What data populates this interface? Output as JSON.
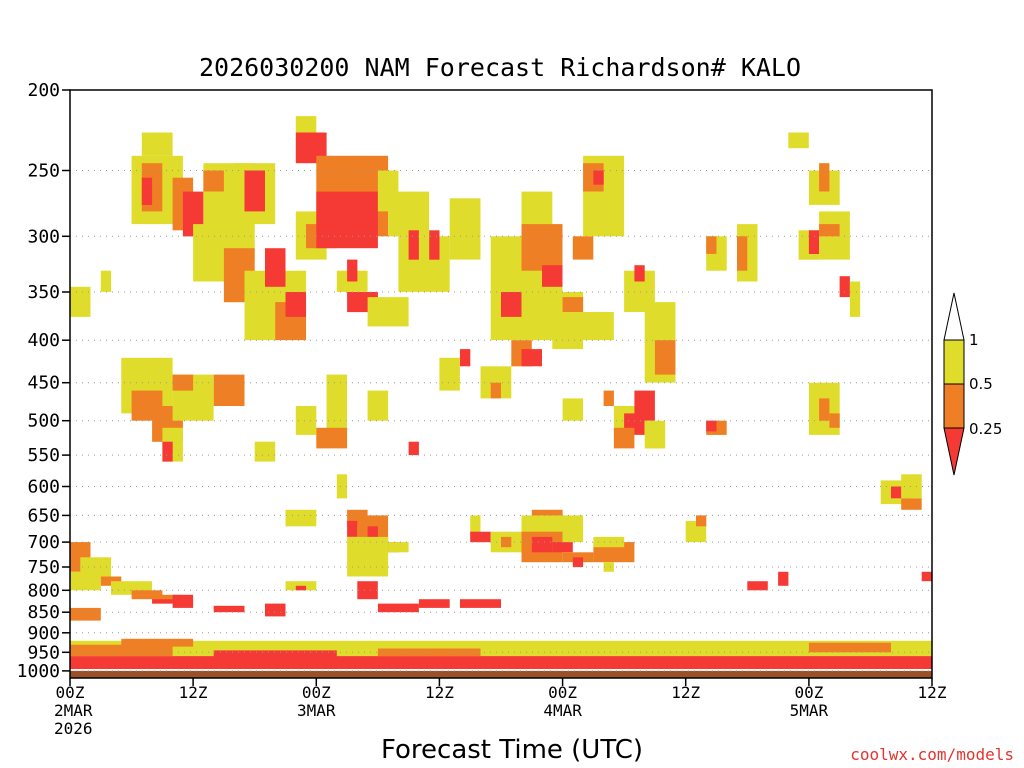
{
  "chart_data": {
    "type": "heatmap",
    "title": "2026030200 NAM Forecast Richardson# KALO",
    "xlabel": "Forecast Time (UTC)",
    "ylabel": "Pressure (hPa)",
    "credit": "coolwx.com/models",
    "y_ticks": [
      200,
      250,
      300,
      350,
      400,
      450,
      500,
      550,
      600,
      650,
      700,
      750,
      800,
      850,
      900,
      950,
      1000
    ],
    "y_range_hPa": [
      200,
      1020
    ],
    "x_range_hours": [
      0,
      84
    ],
    "x_ticks": [
      {
        "hour": 0,
        "lines": [
          "00Z",
          "2MAR",
          "2026"
        ]
      },
      {
        "hour": 12,
        "lines": [
          "12Z"
        ]
      },
      {
        "hour": 24,
        "lines": [
          "00Z",
          "3MAR"
        ]
      },
      {
        "hour": 36,
        "lines": [
          "12Z"
        ]
      },
      {
        "hour": 48,
        "lines": [
          "00Z",
          "4MAR"
        ]
      },
      {
        "hour": 60,
        "lines": [
          "12Z"
        ]
      },
      {
        "hour": 72,
        "lines": [
          "00Z",
          "5MAR"
        ]
      },
      {
        "hour": 84,
        "lines": [
          "12Z"
        ]
      }
    ],
    "legend": {
      "labels": [
        "1",
        "0.5",
        "0.25"
      ],
      "bins": [
        {
          "range": "0.5-1",
          "color": "#e0dc2c"
        },
        {
          "range": "0.25-0.5",
          "color": "#ef7f24"
        },
        {
          "range": "<0.25",
          "color": "#f53a36"
        }
      ]
    },
    "colors": {
      "yellow": "#e0dc2c",
      "orange": "#ef7f24",
      "red": "#f53a36",
      "ground": "#9b5128"
    },
    "grid": "dotted at each pressure tick",
    "approx_cells_note": "each cell: hour range [h0,h1], pressure range [p_top,p_bottom] hPa, bin",
    "cells": [
      [
        0,
        2,
        345,
        375,
        "yellow"
      ],
      [
        3,
        4,
        330,
        350,
        "yellow"
      ],
      [
        7,
        10,
        225,
        240,
        "yellow"
      ],
      [
        6,
        11,
        240,
        290,
        "yellow"
      ],
      [
        7,
        9,
        245,
        280,
        "orange"
      ],
      [
        7,
        8,
        255,
        275,
        "red"
      ],
      [
        10,
        12,
        255,
        295,
        "orange"
      ],
      [
        11,
        13,
        265,
        300,
        "red"
      ],
      [
        12,
        16,
        290,
        340,
        "yellow"
      ],
      [
        13,
        18,
        245,
        320,
        "yellow"
      ],
      [
        13,
        15,
        250,
        265,
        "orange"
      ],
      [
        16,
        20,
        245,
        290,
        "yellow"
      ],
      [
        17,
        19,
        250,
        280,
        "red"
      ],
      [
        15,
        18,
        310,
        360,
        "orange"
      ],
      [
        17,
        23,
        330,
        400,
        "yellow"
      ],
      [
        19,
        21,
        310,
        345,
        "red"
      ],
      [
        20,
        23,
        360,
        400,
        "orange"
      ],
      [
        21,
        23,
        350,
        375,
        "red"
      ],
      [
        22,
        25,
        280,
        320,
        "yellow"
      ],
      [
        23,
        26,
        290,
        310,
        "orange"
      ],
      [
        22,
        24,
        215,
        225,
        "yellow"
      ],
      [
        22,
        25,
        225,
        245,
        "red"
      ],
      [
        24,
        31,
        240,
        300,
        "orange"
      ],
      [
        24,
        30,
        265,
        310,
        "red"
      ],
      [
        30,
        32,
        250,
        280,
        "yellow"
      ],
      [
        31,
        35,
        265,
        300,
        "yellow"
      ],
      [
        26,
        29,
        330,
        350,
        "yellow"
      ],
      [
        27,
        28,
        320,
        340,
        "red"
      ],
      [
        27,
        30,
        350,
        370,
        "red"
      ],
      [
        29,
        33,
        355,
        385,
        "yellow"
      ],
      [
        32,
        37,
        300,
        350,
        "yellow"
      ],
      [
        33,
        34,
        295,
        320,
        "red"
      ],
      [
        35,
        36,
        295,
        320,
        "red"
      ],
      [
        37,
        40,
        270,
        320,
        "yellow"
      ],
      [
        41,
        48,
        300,
        400,
        "yellow"
      ],
      [
        42,
        44,
        350,
        375,
        "red"
      ],
      [
        44,
        46,
        300,
        320,
        "orange"
      ],
      [
        43,
        45,
        400,
        430,
        "orange"
      ],
      [
        44,
        46,
        410,
        430,
        "red"
      ],
      [
        44,
        47,
        265,
        300,
        "yellow"
      ],
      [
        44,
        48,
        290,
        330,
        "orange"
      ],
      [
        46,
        48,
        325,
        345,
        "red"
      ],
      [
        47,
        50,
        350,
        410,
        "yellow"
      ],
      [
        48,
        50,
        355,
        370,
        "orange"
      ],
      [
        49,
        51,
        300,
        320,
        "orange"
      ],
      [
        49,
        53,
        370,
        400,
        "yellow"
      ],
      [
        50,
        54,
        240,
        300,
        "yellow"
      ],
      [
        50,
        52,
        245,
        265,
        "orange"
      ],
      [
        51,
        52,
        250,
        260,
        "red"
      ],
      [
        54,
        57,
        330,
        370,
        "yellow"
      ],
      [
        55,
        56,
        325,
        340,
        "red"
      ],
      [
        56,
        59,
        360,
        450,
        "yellow"
      ],
      [
        57,
        59,
        400,
        440,
        "orange"
      ],
      [
        62,
        64,
        300,
        330,
        "yellow"
      ],
      [
        62,
        63,
        300,
        315,
        "orange"
      ],
      [
        65,
        67,
        290,
        340,
        "yellow"
      ],
      [
        65,
        66,
        300,
        330,
        "orange"
      ],
      [
        71,
        73,
        295,
        320,
        "yellow"
      ],
      [
        72,
        73,
        295,
        315,
        "red"
      ],
      [
        73,
        76,
        280,
        320,
        "yellow"
      ],
      [
        73,
        75,
        290,
        300,
        "orange"
      ],
      [
        70,
        72,
        225,
        235,
        "yellow"
      ],
      [
        72,
        75,
        250,
        275,
        "yellow"
      ],
      [
        73,
        74,
        245,
        265,
        "orange"
      ],
      [
        75,
        76,
        335,
        355,
        "red"
      ],
      [
        76,
        77,
        340,
        375,
        "yellow"
      ],
      [
        5,
        10,
        420,
        490,
        "yellow"
      ],
      [
        6,
        9,
        460,
        500,
        "orange"
      ],
      [
        8,
        11,
        480,
        530,
        "orange"
      ],
      [
        9,
        11,
        510,
        560,
        "yellow"
      ],
      [
        9,
        10,
        530,
        560,
        "red"
      ],
      [
        10,
        14,
        440,
        500,
        "yellow"
      ],
      [
        10,
        12,
        440,
        460,
        "orange"
      ],
      [
        14,
        17,
        440,
        480,
        "orange"
      ],
      [
        18,
        20,
        530,
        560,
        "yellow"
      ],
      [
        22,
        24,
        480,
        520,
        "yellow"
      ],
      [
        25,
        27,
        440,
        520,
        "yellow"
      ],
      [
        24,
        27,
        510,
        540,
        "orange"
      ],
      [
        26,
        27,
        580,
        620,
        "yellow"
      ],
      [
        29,
        31,
        460,
        500,
        "yellow"
      ],
      [
        33,
        34,
        530,
        550,
        "red"
      ],
      [
        36,
        38,
        420,
        460,
        "yellow"
      ],
      [
        38,
        39,
        410,
        430,
        "red"
      ],
      [
        40,
        43,
        430,
        470,
        "yellow"
      ],
      [
        41,
        42,
        450,
        470,
        "orange"
      ],
      [
        48,
        50,
        470,
        500,
        "yellow"
      ],
      [
        52,
        53,
        460,
        480,
        "orange"
      ],
      [
        53,
        56,
        480,
        520,
        "yellow"
      ],
      [
        54,
        56,
        490,
        520,
        "red"
      ],
      [
        53,
        55,
        510,
        540,
        "orange"
      ],
      [
        55,
        57,
        460,
        500,
        "red"
      ],
      [
        56,
        58,
        500,
        540,
        "yellow"
      ],
      [
        62,
        64,
        500,
        520,
        "orange"
      ],
      [
        62,
        63,
        500,
        515,
        "red"
      ],
      [
        72,
        75,
        450,
        520,
        "yellow"
      ],
      [
        73,
        74,
        470,
        500,
        "orange"
      ],
      [
        74,
        75,
        490,
        510,
        "orange"
      ],
      [
        79,
        82,
        590,
        630,
        "yellow"
      ],
      [
        80,
        81,
        600,
        620,
        "red"
      ],
      [
        81,
        83,
        620,
        640,
        "orange"
      ],
      [
        81,
        83,
        580,
        620,
        "yellow"
      ],
      [
        21,
        24,
        640,
        670,
        "yellow"
      ],
      [
        27,
        29,
        640,
        670,
        "orange"
      ],
      [
        27,
        28,
        660,
        690,
        "red"
      ],
      [
        28,
        31,
        650,
        700,
        "orange"
      ],
      [
        29,
        30,
        670,
        690,
        "red"
      ],
      [
        30,
        32,
        700,
        720,
        "orange"
      ],
      [
        27,
        31,
        690,
        770,
        "yellow"
      ],
      [
        31,
        33,
        700,
        720,
        "yellow"
      ],
      [
        39,
        40,
        650,
        690,
        "yellow"
      ],
      [
        39,
        41,
        680,
        700,
        "red"
      ],
      [
        41,
        44,
        680,
        720,
        "yellow"
      ],
      [
        42,
        43,
        690,
        710,
        "orange"
      ],
      [
        45,
        48,
        640,
        660,
        "orange"
      ],
      [
        44,
        50,
        650,
        700,
        "yellow"
      ],
      [
        44,
        48,
        680,
        740,
        "orange"
      ],
      [
        45,
        47,
        690,
        720,
        "red"
      ],
      [
        47,
        49,
        700,
        720,
        "red"
      ],
      [
        48,
        51,
        720,
        740,
        "orange"
      ],
      [
        49,
        50,
        730,
        750,
        "red"
      ],
      [
        51,
        55,
        700,
        740,
        "orange"
      ],
      [
        51,
        54,
        690,
        710,
        "yellow"
      ],
      [
        52,
        53,
        740,
        760,
        "yellow"
      ],
      [
        60,
        62,
        660,
        700,
        "yellow"
      ],
      [
        61,
        62,
        650,
        670,
        "orange"
      ],
      [
        0,
        2,
        700,
        760,
        "orange"
      ],
      [
        0,
        3,
        760,
        800,
        "yellow"
      ],
      [
        1,
        4,
        730,
        770,
        "yellow"
      ],
      [
        3,
        5,
        770,
        790,
        "orange"
      ],
      [
        4,
        8,
        780,
        810,
        "yellow"
      ],
      [
        6,
        9,
        800,
        820,
        "orange"
      ],
      [
        8,
        11,
        810,
        830,
        "orange"
      ],
      [
        8,
        10,
        820,
        830,
        "red"
      ],
      [
        10,
        12,
        810,
        840,
        "red"
      ],
      [
        14,
        17,
        835,
        850,
        "red"
      ],
      [
        19,
        21,
        830,
        860,
        "red"
      ],
      [
        21,
        24,
        780,
        800,
        "yellow"
      ],
      [
        22,
        23,
        790,
        800,
        "red"
      ],
      [
        28,
        30,
        780,
        820,
        "red"
      ],
      [
        30,
        34,
        830,
        850,
        "red"
      ],
      [
        34,
        37,
        820,
        840,
        "red"
      ],
      [
        38,
        42,
        820,
        840,
        "red"
      ],
      [
        66,
        68,
        780,
        800,
        "red"
      ],
      [
        69,
        70,
        760,
        790,
        "red"
      ],
      [
        83,
        84,
        760,
        780,
        "red"
      ],
      [
        0,
        3,
        840,
        870,
        "orange"
      ],
      [
        0,
        84,
        920,
        960,
        "yellow"
      ],
      [
        0,
        84,
        960,
        995,
        "red"
      ],
      [
        0,
        10,
        930,
        960,
        "orange"
      ],
      [
        5,
        12,
        915,
        935,
        "orange"
      ],
      [
        14,
        26,
        945,
        980,
        "red"
      ],
      [
        30,
        40,
        940,
        960,
        "orange"
      ],
      [
        72,
        80,
        925,
        950,
        "orange"
      ]
    ],
    "ground_band_hPa": [
      1000,
      1020
    ]
  }
}
